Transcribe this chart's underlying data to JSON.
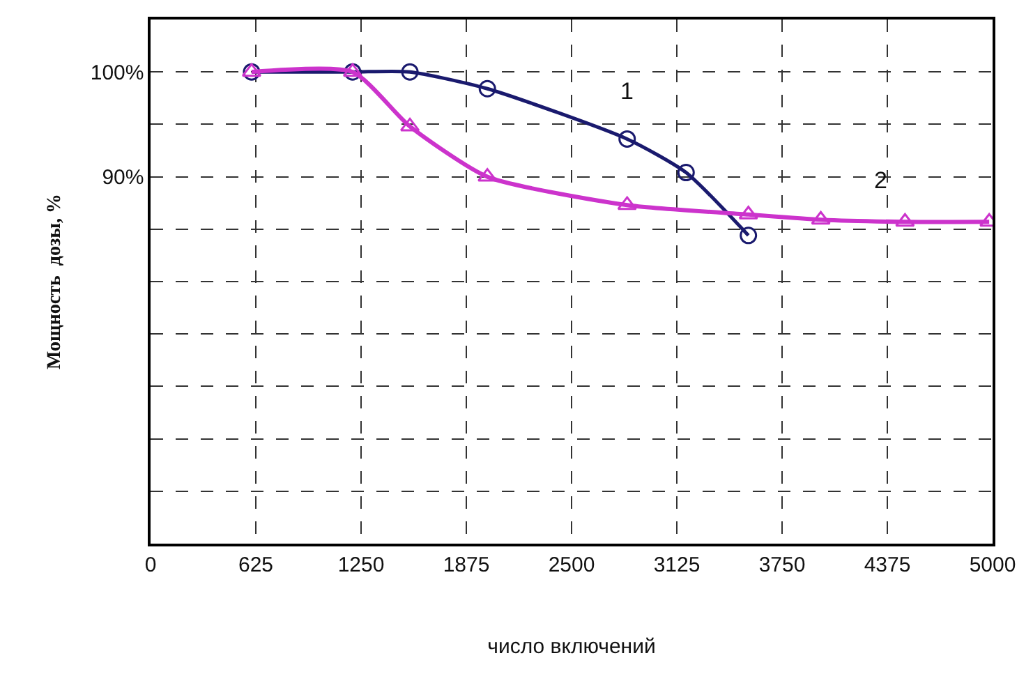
{
  "chart_data": {
    "type": "line",
    "xlabel": "число включений",
    "ylabel": "Мощность  дозы, %",
    "xlim": [
      0,
      5000
    ],
    "xticks": [
      0,
      625,
      1250,
      1875,
      2500,
      3125,
      3750,
      4375,
      5000
    ],
    "ylim": [
      55,
      105
    ],
    "yticks": [
      {
        "value": 55,
        "label": null
      },
      {
        "value": 60,
        "label": null
      },
      {
        "value": 65,
        "label": null
      },
      {
        "value": 70,
        "label": null
      },
      {
        "value": 75,
        "label": null
      },
      {
        "value": 80,
        "label": null
      },
      {
        "value": 85,
        "label": null
      },
      {
        "value": 90,
        "label": "90%"
      },
      {
        "value": 95,
        "label": null
      },
      {
        "value": 100,
        "label": "100%"
      }
    ],
    "grid": true,
    "line_style": "solid",
    "series": [
      {
        "name": "1",
        "color": "#1a1a6e",
        "marker": "circle",
        "x": [
          600,
          1200,
          1540,
          2000,
          2830,
          3180,
          3550
        ],
        "values": [
          100,
          100,
          100,
          98.4,
          93.6,
          90.4,
          84.4
        ]
      },
      {
        "name": "2",
        "color": "#cc33cc",
        "marker": "triangle",
        "x": [
          600,
          1200,
          1540,
          2000,
          2830,
          3550,
          3980,
          4480,
          4980
        ],
        "values": [
          100,
          100,
          94.8,
          90,
          87.3,
          86.4,
          85.9,
          85.7,
          85.7
        ]
      }
    ]
  }
}
